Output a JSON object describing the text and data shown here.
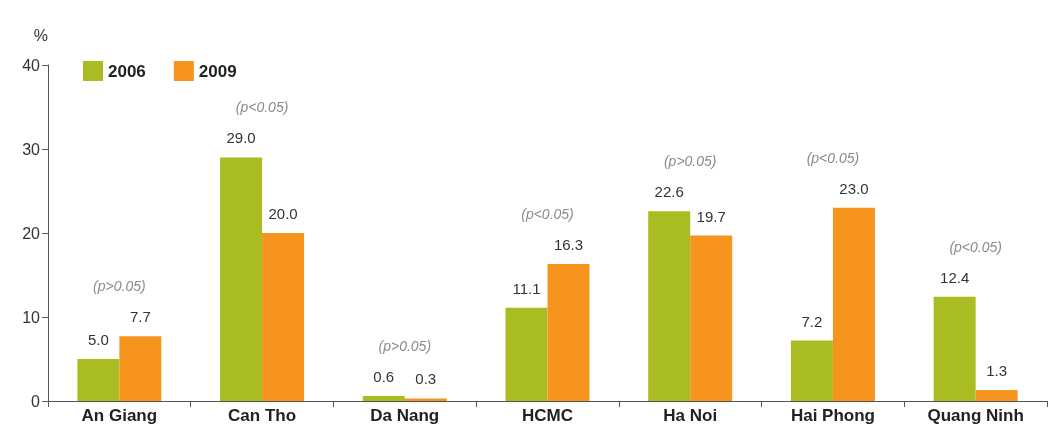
{
  "chart_data": {
    "type": "bar",
    "ylabel": "%",
    "categories": [
      "An Giang",
      "Can Tho",
      "Da Nang",
      "HCMC",
      "Ha Noi",
      "Hai Phong",
      "Quang Ninh"
    ],
    "series": [
      {
        "name": "2006",
        "color": "#a9bd22",
        "values": [
          5.0,
          29.0,
          0.6,
          11.1,
          22.6,
          7.2,
          12.4
        ],
        "value_labels": [
          "5.0",
          "29.0",
          "0.6",
          "11.1",
          "22.6",
          "7.2",
          "12.4"
        ]
      },
      {
        "name": "2009",
        "color": "#f7941d",
        "values": [
          7.7,
          20.0,
          0.3,
          16.3,
          19.7,
          23.0,
          1.3
        ],
        "value_labels": [
          "7.7",
          "20.0",
          "0.3",
          "16.3",
          "19.7",
          "23.0",
          "1.3"
        ]
      }
    ],
    "ylim": [
      0,
      40
    ],
    "yticks": [
      0,
      10,
      20,
      30,
      40
    ],
    "grid": false,
    "legend": "top left",
    "annotations": [
      "(p>0.05)",
      "(p<0.05)",
      "(p>0.05)",
      "(p<0.05)",
      "(p>0.05)",
      "(p<0.05)",
      "(p<0.05)"
    ]
  }
}
